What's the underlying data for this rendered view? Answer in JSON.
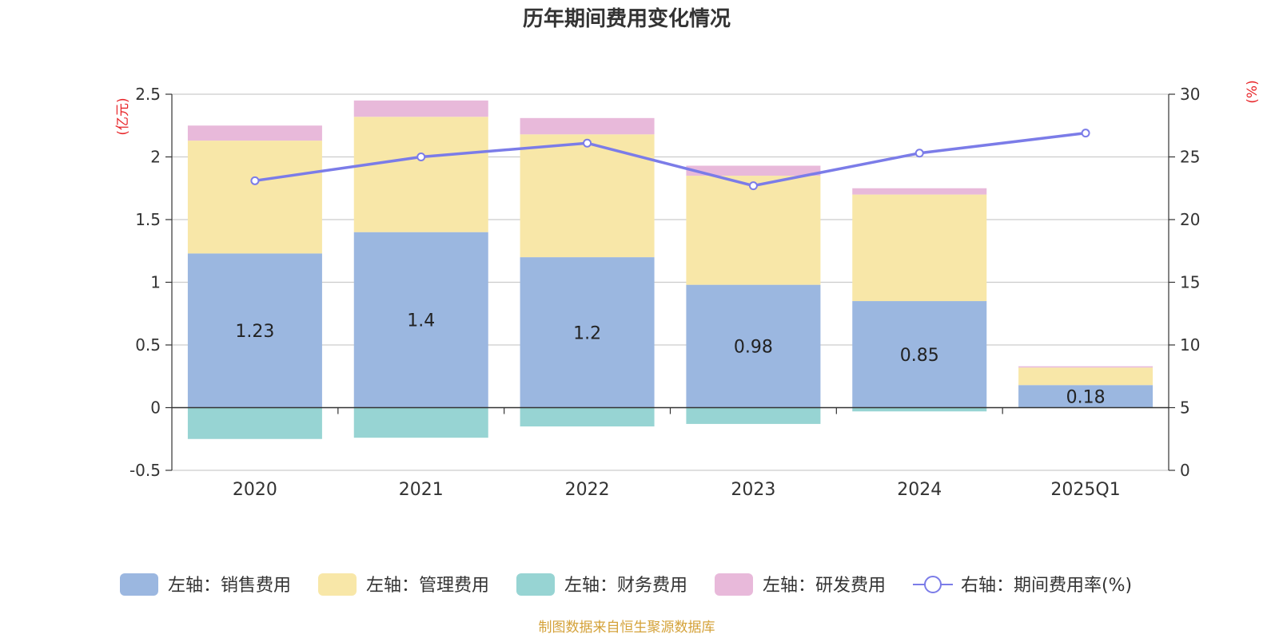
{
  "chart_data": {
    "type": "bar",
    "title": "历年期间费用变化情况",
    "categories": [
      "2020",
      "2021",
      "2022",
      "2023",
      "2024",
      "2025Q1"
    ],
    "left_axis": {
      "unit": "(亿元)",
      "min": -0.5,
      "max": 2.5,
      "ticks": [
        "-0.5",
        "0",
        "0.5",
        "1",
        "1.5",
        "2",
        "2.5"
      ]
    },
    "right_axis": {
      "unit": "(%)",
      "min": 0,
      "max": 30,
      "ticks": [
        "0",
        "5",
        "10",
        "15",
        "20",
        "25",
        "30"
      ]
    },
    "grid": true,
    "legend_position": "bottom",
    "series": [
      {
        "name": "左轴：销售费用",
        "type": "bar",
        "color": "#9bb7e0",
        "values": [
          1.23,
          1.4,
          1.2,
          0.98,
          0.85,
          0.18
        ],
        "labels": [
          "1.23",
          "1.4",
          "1.2",
          "0.98",
          "0.85",
          "0.18"
        ]
      },
      {
        "name": "左轴：管理费用",
        "type": "bar",
        "color": "#f8e7a8",
        "values": [
          0.9,
          0.92,
          0.98,
          0.87,
          0.85,
          0.14
        ]
      },
      {
        "name": "左轴：财务费用",
        "type": "bar",
        "color": "#97d4d3",
        "values": [
          -0.25,
          -0.24,
          -0.15,
          -0.13,
          -0.03,
          0.0
        ]
      },
      {
        "name": "左轴：研发费用",
        "type": "bar",
        "color": "#e8b9da",
        "values": [
          0.12,
          0.13,
          0.13,
          0.08,
          0.05,
          0.01
        ]
      },
      {
        "name": "右轴：期间费用率(%)",
        "type": "line",
        "color": "#7b7ce8",
        "values": [
          23.1,
          25.0,
          26.1,
          22.7,
          25.3,
          26.9
        ]
      }
    ],
    "source_note": "制图数据来自恒生聚源数据库"
  }
}
